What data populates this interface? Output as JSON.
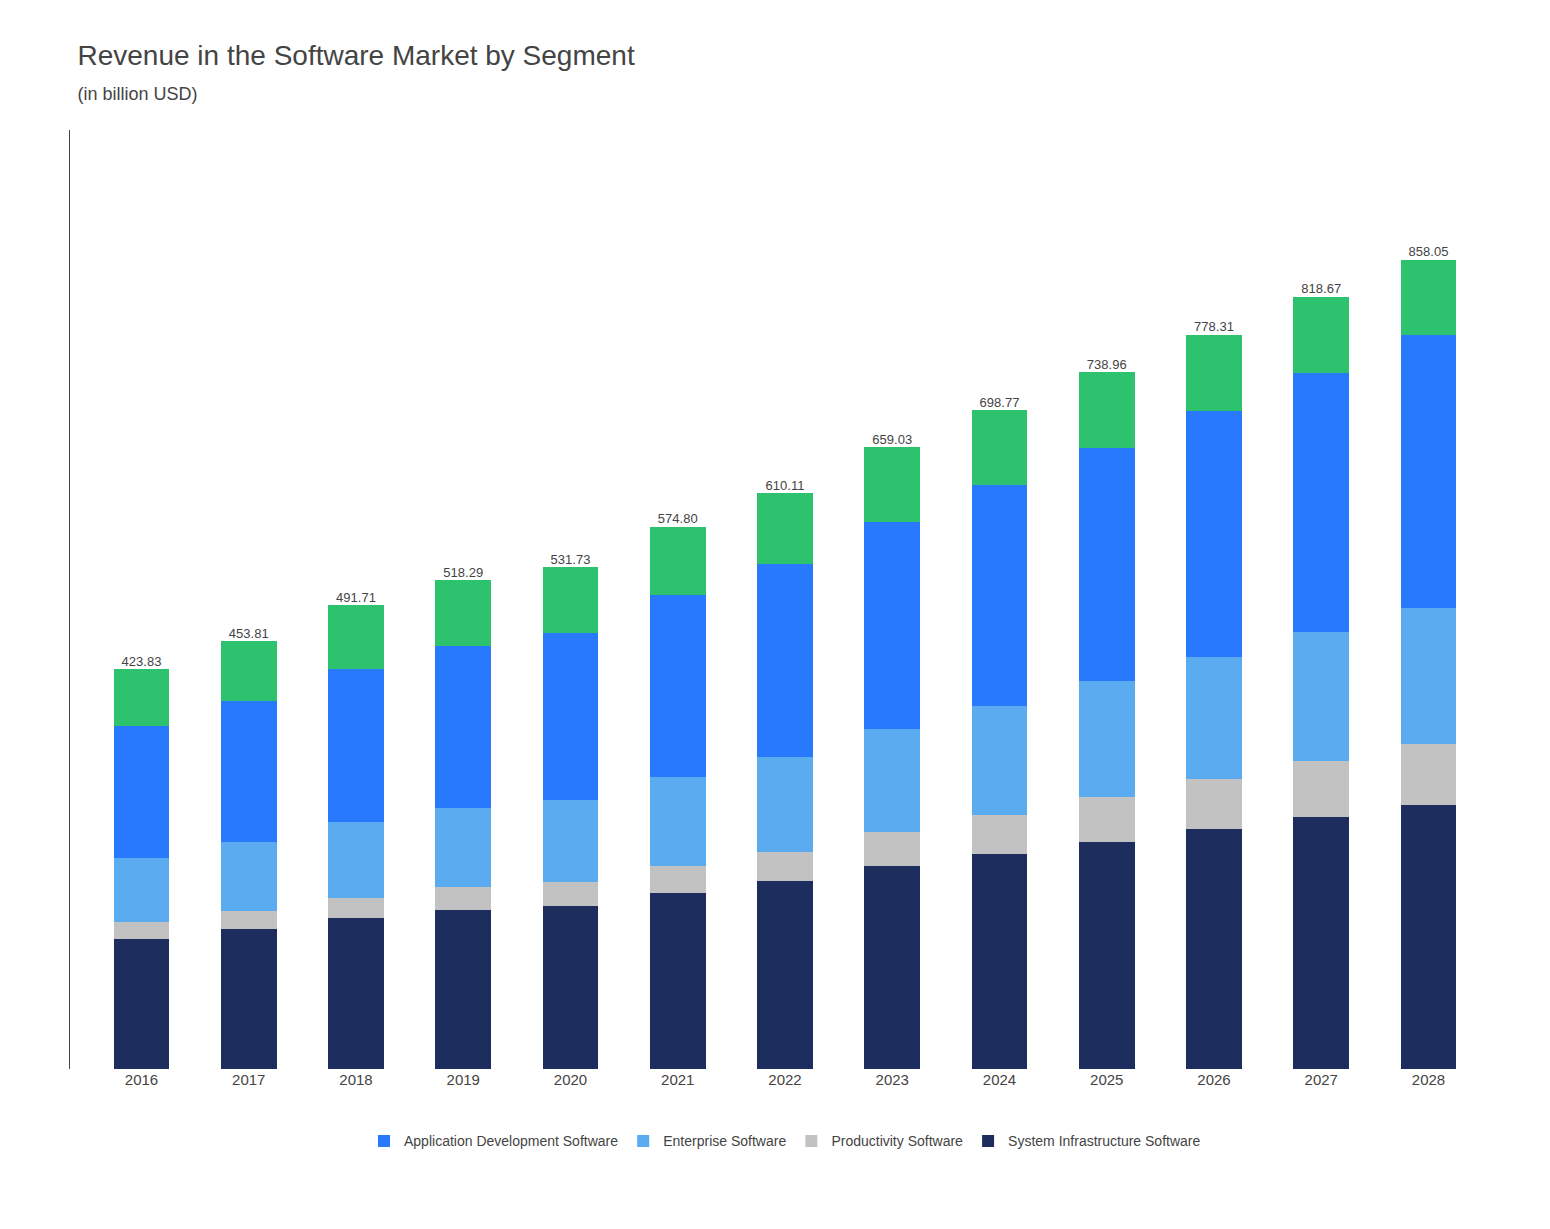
{
  "chart_data": {
    "type": "bar",
    "title": "Revenue in the Software Market by Segment",
    "subtitle": "(in billion USD)",
    "categories": [
      "2016",
      "2017",
      "2018",
      "2019",
      "2020",
      "2021",
      "2022",
      "2023",
      "2024",
      "2025",
      "2026",
      "2027",
      "2028"
    ],
    "stacked": true,
    "series": [
      {
        "name": "System Infrastructure Software",
        "color": "#1c2d5e",
        "values": [
          138.0,
          148.0,
          160.0,
          169.0,
          173.0,
          187.0,
          199.0,
          215.0,
          228.0,
          241.0,
          254.0,
          267.0,
          280.0
        ]
      },
      {
        "name": "Productivity Software",
        "color": "#c2c2c2",
        "values": [
          18.0,
          19.5,
          21.5,
          23.5,
          25.0,
          28.0,
          31.0,
          36.0,
          41.0,
          47.0,
          53.0,
          59.0,
          65.0
        ]
      },
      {
        "name": "Enterprise Software",
        "color": "#5aabf0",
        "values": [
          68.0,
          73.0,
          80.0,
          84.0,
          87.0,
          95.0,
          101.0,
          109.0,
          116.0,
          123.0,
          130.0,
          137.0,
          144.0
        ]
      },
      {
        "name": "Application Development Software",
        "color": "#2979ff",
        "values": [
          140.0,
          150.0,
          163.0,
          172.0,
          177.0,
          192.0,
          204.0,
          220.0,
          234.0,
          247.0,
          261.0,
          275.0,
          289.0
        ]
      },
      {
        "color": "#2dc26e",
        "values": [
          59.83,
          63.31,
          67.21,
          69.79,
          69.73,
          72.8,
          75.11,
          79.03,
          79.77,
          80.96,
          80.31,
          80.67,
          80.05
        ]
      }
    ],
    "totals": [
      423.83,
      453.81,
      491.71,
      518.29,
      531.73,
      574.8,
      610.11,
      659.03,
      698.77,
      738.96,
      778.31,
      818.67,
      858.05
    ],
    "total_labels": [
      "423.83",
      "453.81",
      "491.71",
      "518.29",
      "531.73",
      "574.80",
      "610.11",
      "659.03",
      "698.77",
      "738.96",
      "778.31",
      "818.67",
      "858.05"
    ],
    "ylim": [
      0,
      995.338
    ],
    "yticks": [],
    "tick_labels": "x",
    "grid": false,
    "legend": "bottom"
  }
}
